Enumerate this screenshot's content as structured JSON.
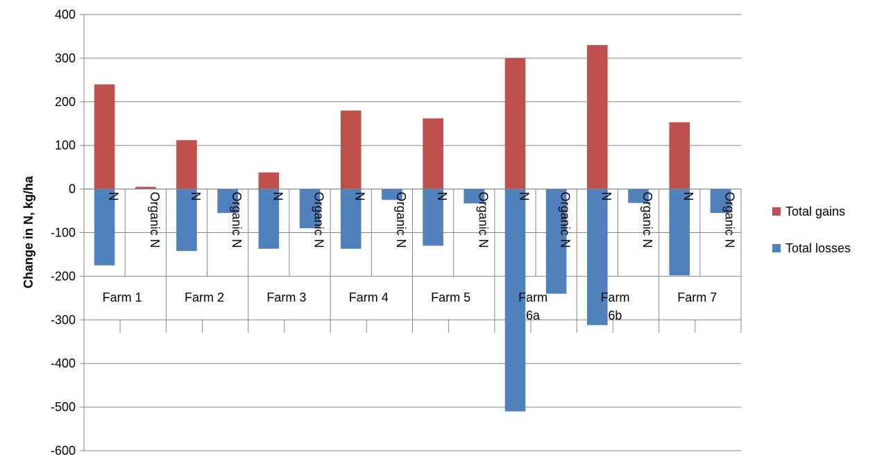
{
  "chart_data": {
    "type": "bar",
    "title": "",
    "xlabel": "",
    "ylabel": "Change in N, kg/ha",
    "ylim": [
      -600,
      400
    ],
    "yticks": [
      400,
      300,
      200,
      100,
      0,
      -100,
      -200,
      -300,
      -400,
      -500,
      -600
    ],
    "grid": true,
    "legend_position": "right",
    "groups": [
      {
        "label": "Farm 1",
        "label_lines": [
          "Farm 1"
        ]
      },
      {
        "label": "Farm 2",
        "label_lines": [
          "Farm 2"
        ]
      },
      {
        "label": "Farm 3",
        "label_lines": [
          "Farm 3"
        ]
      },
      {
        "label": "Farm 4",
        "label_lines": [
          "Farm 4"
        ]
      },
      {
        "label": "Farm 5",
        "label_lines": [
          "Farm 5"
        ]
      },
      {
        "label": "Farm 6a",
        "label_lines": [
          "Farm",
          "6a"
        ]
      },
      {
        "label": "Farm 6b",
        "label_lines": [
          "Farm",
          "6b"
        ]
      },
      {
        "label": "Farm 7",
        "label_lines": [
          "Farm 7"
        ]
      }
    ],
    "subcategories": [
      "N",
      "Organic N"
    ],
    "series": [
      {
        "name": "Total gains",
        "color": "#C0504D",
        "values": [
          [
            240,
            5
          ],
          [
            112,
            0
          ],
          [
            38,
            0
          ],
          [
            180,
            0
          ],
          [
            162,
            0
          ],
          [
            300,
            0
          ],
          [
            330,
            0
          ],
          [
            153,
            0
          ]
        ]
      },
      {
        "name": "Total losses",
        "color": "#4F81BD",
        "values": [
          [
            -175,
            0
          ],
          [
            -142,
            -55
          ],
          [
            -137,
            -90
          ],
          [
            -137,
            -25
          ],
          [
            -130,
            -33
          ],
          [
            -510,
            -240
          ],
          [
            -312,
            -32
          ],
          [
            -198,
            -55
          ]
        ]
      }
    ]
  }
}
